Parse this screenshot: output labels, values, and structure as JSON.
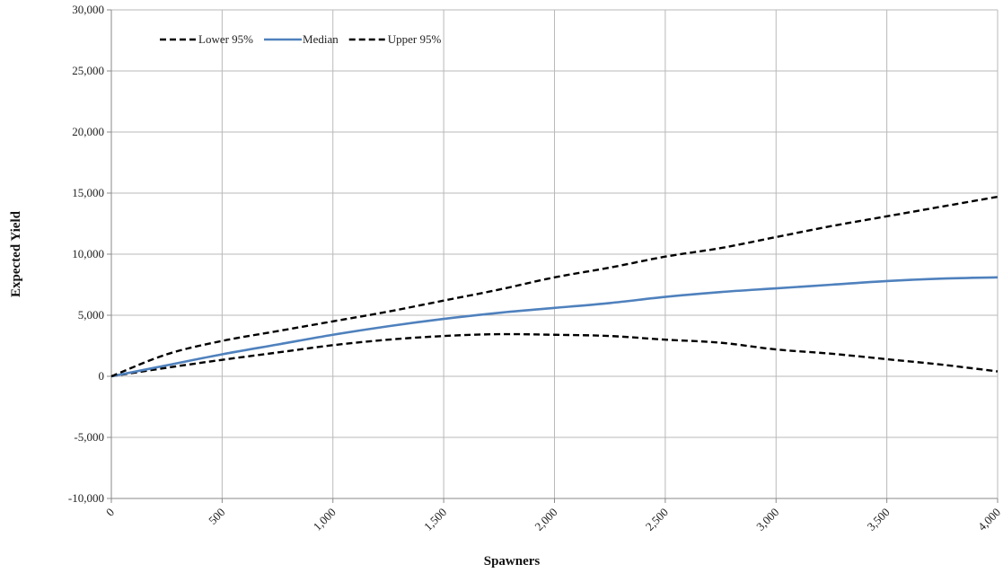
{
  "chart_data": {
    "type": "line",
    "title": "",
    "xlabel": "Spawners",
    "ylabel": "Expected Yield",
    "xlim": [
      0,
      4000
    ],
    "ylim": [
      -10000,
      30000
    ],
    "x_ticks": [
      0,
      500,
      1000,
      1500,
      2000,
      2500,
      3000,
      3500,
      4000
    ],
    "x_tick_labels": [
      "0",
      "500",
      "1,000",
      "1,500",
      "2,000",
      "2,500",
      "3,000",
      "3,500",
      "4,000"
    ],
    "y_ticks": [
      -10000,
      -5000,
      0,
      5000,
      10000,
      15000,
      20000,
      25000,
      30000
    ],
    "y_tick_labels": [
      "-10,000",
      "-5,000",
      "0",
      "5,000",
      "10,000",
      "15,000",
      "20,000",
      "25,000",
      "30,000"
    ],
    "grid": true,
    "legend_position": "top-left",
    "series": [
      {
        "name": "Lower 95%",
        "color": "#000000",
        "style": "dashed",
        "x": [
          0,
          250,
          500,
          750,
          1000,
          1250,
          1500,
          1750,
          2000,
          2250,
          2500,
          2750,
          3000,
          3250,
          3500,
          3750,
          4000
        ],
        "y": [
          0,
          700,
          1350,
          1950,
          2550,
          3000,
          3300,
          3450,
          3400,
          3300,
          3000,
          2750,
          2200,
          1850,
          1400,
          950,
          400
        ]
      },
      {
        "name": "Median",
        "color": "#4f81bd",
        "style": "solid",
        "x": [
          0,
          250,
          500,
          750,
          1000,
          1250,
          1500,
          1750,
          2000,
          2250,
          2500,
          2750,
          3000,
          3250,
          3500,
          3750,
          4000
        ],
        "y": [
          0,
          900,
          1800,
          2600,
          3400,
          4100,
          4700,
          5200,
          5600,
          6000,
          6500,
          6900,
          7200,
          7500,
          7800,
          8000,
          8100
        ]
      },
      {
        "name": "Upper 95%",
        "color": "#000000",
        "style": "dashed",
        "x": [
          0,
          250,
          500,
          750,
          1000,
          1250,
          1500,
          1750,
          2000,
          2250,
          2500,
          2750,
          3000,
          3250,
          3500,
          3750,
          4000
        ],
        "y": [
          0,
          1800,
          2900,
          3700,
          4500,
          5300,
          6200,
          7100,
          8100,
          8900,
          9800,
          10500,
          11400,
          12300,
          13100,
          13900,
          14700
        ]
      }
    ]
  }
}
